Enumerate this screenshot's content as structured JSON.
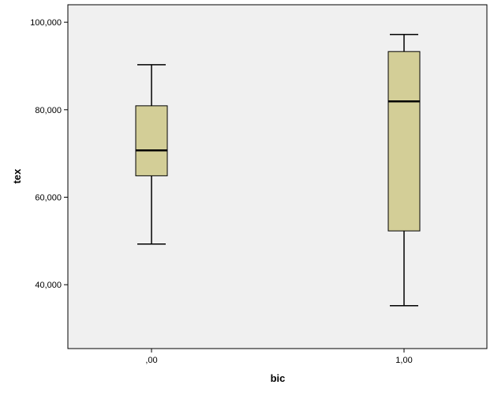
{
  "chart_data": {
    "type": "boxplot",
    "xlabel": "bic",
    "ylabel": "tex",
    "categories": [
      ",00",
      "1,00"
    ],
    "boxes": [
      {
        "category": ",00",
        "whisker_low": 49300,
        "q1": 64900,
        "median": 70700,
        "q3": 80900,
        "whisker_high": 90300
      },
      {
        "category": "1,00",
        "whisker_low": 35200,
        "q1": 52300,
        "median": 81900,
        "q3": 93300,
        "whisker_high": 97200
      }
    ],
    "yticks": [
      40000,
      60000,
      80000,
      100000
    ],
    "ytick_labels": [
      "40,000",
      "60,000",
      "80,000",
      "100,000"
    ],
    "ylim": [
      25400,
      104000
    ],
    "grid": false,
    "colors": {
      "plot_background": "#f0f0f0",
      "box_fill": "#d3ce97",
      "box_stroke": "#000000"
    }
  }
}
